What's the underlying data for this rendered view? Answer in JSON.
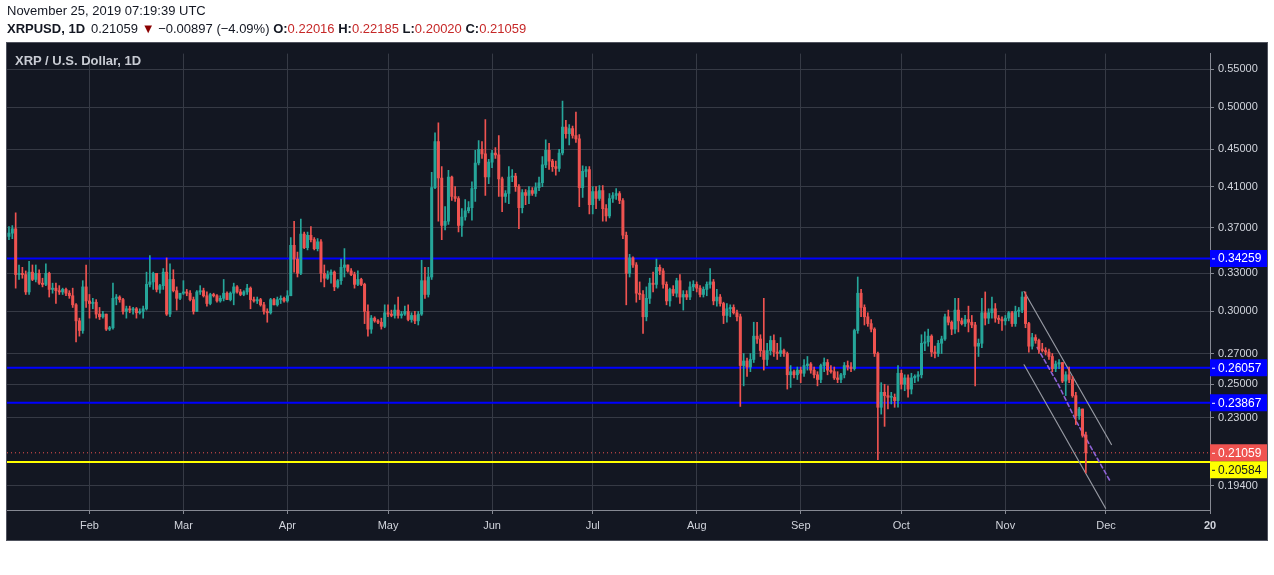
{
  "chart_data": {
    "type": "candlestick",
    "title": "XRP / U.S. Dollar, 1D",
    "subtitle": "XRPUSD, 1D",
    "annotations": [
      "November 25, 2019 07:19:39 UTC",
      "0.21059 ▼ −0.00897 (−4.09%) O:0.22016 H:0.22185 L:0.20020 C:0.21059"
    ],
    "x": [
      "2019-01-08",
      "2019-01-09",
      "2019-01-10",
      "2019-01-11",
      "2019-01-12",
      "2019-01-13",
      "2019-01-14",
      "2019-01-15",
      "2019-01-16",
      "2019-01-17",
      "2019-01-18",
      "2019-01-19",
      "2019-01-20",
      "2019-01-21",
      "2019-01-22",
      "2019-01-23",
      "2019-01-24",
      "2019-01-25",
      "2019-01-26",
      "2019-01-27",
      "2019-01-28",
      "2019-01-29",
      "2019-01-30",
      "2019-01-31",
      "2019-02-01",
      "2019-02-02",
      "2019-02-03",
      "2019-02-04",
      "2019-02-05",
      "2019-02-06",
      "2019-02-07",
      "2019-02-08",
      "2019-02-09",
      "2019-02-10",
      "2019-02-11",
      "2019-02-12",
      "2019-02-13",
      "2019-02-14",
      "2019-02-15",
      "2019-02-16",
      "2019-02-17",
      "2019-02-18",
      "2019-02-19",
      "2019-02-20",
      "2019-02-21",
      "2019-02-22",
      "2019-02-23",
      "2019-02-24",
      "2019-02-25",
      "2019-02-26",
      "2019-02-27",
      "2019-02-28",
      "2019-03-01",
      "2019-03-02",
      "2019-03-03",
      "2019-03-04",
      "2019-03-05",
      "2019-03-06",
      "2019-03-07",
      "2019-03-08",
      "2019-03-09",
      "2019-03-10",
      "2019-03-11",
      "2019-03-12",
      "2019-03-13",
      "2019-03-14",
      "2019-03-15",
      "2019-03-16",
      "2019-03-17",
      "2019-03-18",
      "2019-03-19",
      "2019-03-20",
      "2019-03-21",
      "2019-03-22",
      "2019-03-23",
      "2019-03-24",
      "2019-03-25",
      "2019-03-26",
      "2019-03-27",
      "2019-03-28",
      "2019-03-29",
      "2019-03-30",
      "2019-03-31",
      "2019-04-01",
      "2019-04-02",
      "2019-04-03",
      "2019-04-04",
      "2019-04-05",
      "2019-04-06",
      "2019-04-07",
      "2019-04-08",
      "2019-04-09",
      "2019-04-10",
      "2019-04-11",
      "2019-04-12",
      "2019-04-13",
      "2019-04-14",
      "2019-04-15",
      "2019-04-16",
      "2019-04-17",
      "2019-04-18",
      "2019-04-19",
      "2019-04-20",
      "2019-04-21",
      "2019-04-22",
      "2019-04-23",
      "2019-04-24",
      "2019-04-25",
      "2019-04-26",
      "2019-04-27",
      "2019-04-28",
      "2019-04-29",
      "2019-04-30",
      "2019-05-01",
      "2019-05-02",
      "2019-05-03",
      "2019-05-04",
      "2019-05-05",
      "2019-05-06",
      "2019-05-07",
      "2019-05-08",
      "2019-05-09",
      "2019-05-10",
      "2019-05-11",
      "2019-05-12",
      "2019-05-13",
      "2019-05-14",
      "2019-05-15",
      "2019-05-16",
      "2019-05-17",
      "2019-05-18",
      "2019-05-19",
      "2019-05-20",
      "2019-05-21",
      "2019-05-22",
      "2019-05-23",
      "2019-05-24",
      "2019-05-25",
      "2019-05-26",
      "2019-05-27",
      "2019-05-28",
      "2019-05-29",
      "2019-05-30",
      "2019-05-31",
      "2019-06-01",
      "2019-06-02",
      "2019-06-03",
      "2019-06-04",
      "2019-06-05",
      "2019-06-06",
      "2019-06-07",
      "2019-06-08",
      "2019-06-09",
      "2019-06-10",
      "2019-06-11",
      "2019-06-12",
      "2019-06-13",
      "2019-06-14",
      "2019-06-15",
      "2019-06-16",
      "2019-06-17",
      "2019-06-18",
      "2019-06-19",
      "2019-06-20",
      "2019-06-21",
      "2019-06-22",
      "2019-06-23",
      "2019-06-24",
      "2019-06-25",
      "2019-06-26",
      "2019-06-27",
      "2019-06-28",
      "2019-06-29",
      "2019-06-30",
      "2019-07-01",
      "2019-07-02",
      "2019-07-03",
      "2019-07-04",
      "2019-07-05",
      "2019-07-06",
      "2019-07-07",
      "2019-07-08",
      "2019-07-09",
      "2019-07-10",
      "2019-07-11",
      "2019-07-12",
      "2019-07-13",
      "2019-07-14",
      "2019-07-15",
      "2019-07-16",
      "2019-07-17",
      "2019-07-18",
      "2019-07-19",
      "2019-07-20",
      "2019-07-21",
      "2019-07-22",
      "2019-07-23",
      "2019-07-24",
      "2019-07-25",
      "2019-07-26",
      "2019-07-27",
      "2019-07-28",
      "2019-07-29",
      "2019-07-30",
      "2019-07-31",
      "2019-08-01",
      "2019-08-02",
      "2019-08-03",
      "2019-08-04",
      "2019-08-05",
      "2019-08-06",
      "2019-08-07",
      "2019-08-08",
      "2019-08-09",
      "2019-08-10",
      "2019-08-11",
      "2019-08-12",
      "2019-08-13",
      "2019-08-14",
      "2019-08-15",
      "2019-08-16",
      "2019-08-17",
      "2019-08-18",
      "2019-08-19",
      "2019-08-20",
      "2019-08-21",
      "2019-08-22",
      "2019-08-23",
      "2019-08-24",
      "2019-08-25",
      "2019-08-26",
      "2019-08-27",
      "2019-08-28",
      "2019-08-29",
      "2019-08-30",
      "2019-08-31",
      "2019-09-01",
      "2019-09-02",
      "2019-09-03",
      "2019-09-04",
      "2019-09-05",
      "2019-09-06",
      "2019-09-07",
      "2019-09-08",
      "2019-09-09",
      "2019-09-10",
      "2019-09-11",
      "2019-09-12",
      "2019-09-13",
      "2019-09-14",
      "2019-09-15",
      "2019-09-16",
      "2019-09-17",
      "2019-09-18",
      "2019-09-19",
      "2019-09-20",
      "2019-09-21",
      "2019-09-22",
      "2019-09-23",
      "2019-09-24",
      "2019-09-25",
      "2019-09-26",
      "2019-09-27",
      "2019-09-28",
      "2019-09-29",
      "2019-09-30",
      "2019-10-01",
      "2019-10-02",
      "2019-10-03",
      "2019-10-04",
      "2019-10-05",
      "2019-10-06",
      "2019-10-07",
      "2019-10-08",
      "2019-10-09",
      "2019-10-10",
      "2019-10-11",
      "2019-10-12",
      "2019-10-13",
      "2019-10-14",
      "2019-10-15",
      "2019-10-16",
      "2019-10-17",
      "2019-10-18",
      "2019-10-19",
      "2019-10-20",
      "2019-10-21",
      "2019-10-22",
      "2019-10-23",
      "2019-10-24",
      "2019-10-25",
      "2019-10-26",
      "2019-10-27",
      "2019-10-28",
      "2019-10-29",
      "2019-10-30",
      "2019-10-31",
      "2019-11-01",
      "2019-11-02",
      "2019-11-03",
      "2019-11-04",
      "2019-11-05",
      "2019-11-06",
      "2019-11-07",
      "2019-11-08",
      "2019-11-09",
      "2019-11-10",
      "2019-11-11",
      "2019-11-12",
      "2019-11-13",
      "2019-11-14",
      "2019-11-15",
      "2019-11-16",
      "2019-11-17",
      "2019-11-18",
      "2019-11-19",
      "2019-11-20",
      "2019-11-21",
      "2019-11-22",
      "2019-11-23",
      "2019-11-24",
      "2019-11-25"
    ],
    "ohlc": [
      [
        0.362,
        0.371,
        0.359,
        0.365
      ],
      [
        0.365,
        0.372,
        0.36,
        0.369
      ],
      [
        0.369,
        0.384,
        0.318,
        0.329
      ],
      [
        0.329,
        0.337,
        0.325,
        0.33
      ],
      [
        0.33,
        0.335,
        0.326,
        0.329
      ],
      [
        0.329,
        0.332,
        0.313,
        0.315
      ],
      [
        0.315,
        0.34,
        0.313,
        0.331
      ],
      [
        0.331,
        0.337,
        0.324,
        0.325
      ],
      [
        0.325,
        0.337,
        0.323,
        0.33
      ],
      [
        0.33,
        0.333,
        0.321,
        0.322
      ],
      [
        0.322,
        0.326,
        0.319,
        0.321
      ],
      [
        0.321,
        0.338,
        0.32,
        0.33
      ],
      [
        0.33,
        0.331,
        0.311,
        0.317
      ],
      [
        0.317,
        0.322,
        0.314,
        0.318
      ],
      [
        0.318,
        0.322,
        0.306,
        0.316
      ],
      [
        0.316,
        0.32,
        0.313,
        0.315
      ],
      [
        0.315,
        0.318,
        0.313,
        0.317
      ],
      [
        0.317,
        0.318,
        0.312,
        0.314
      ],
      [
        0.314,
        0.316,
        0.31,
        0.312
      ],
      [
        0.312,
        0.318,
        0.303,
        0.305
      ],
      [
        0.305,
        0.306,
        0.278,
        0.293
      ],
      [
        0.293,
        0.295,
        0.282,
        0.286
      ],
      [
        0.286,
        0.324,
        0.284,
        0.319
      ],
      [
        0.319,
        0.337,
        0.303,
        0.308
      ],
      [
        0.308,
        0.313,
        0.295,
        0.306
      ],
      [
        0.306,
        0.31,
        0.302,
        0.307
      ],
      [
        0.307,
        0.309,
        0.295,
        0.298
      ],
      [
        0.298,
        0.303,
        0.294,
        0.296
      ],
      [
        0.296,
        0.3,
        0.295,
        0.298
      ],
      [
        0.298,
        0.298,
        0.286,
        0.287
      ],
      [
        0.287,
        0.289,
        0.286,
        0.288
      ],
      [
        0.288,
        0.322,
        0.287,
        0.31
      ],
      [
        0.31,
        0.313,
        0.305,
        0.311
      ],
      [
        0.311,
        0.312,
        0.307,
        0.309
      ],
      [
        0.309,
        0.31,
        0.298,
        0.3
      ],
      [
        0.3,
        0.304,
        0.295,
        0.302
      ],
      [
        0.302,
        0.304,
        0.299,
        0.301
      ],
      [
        0.301,
        0.303,
        0.298,
        0.302
      ],
      [
        0.302,
        0.303,
        0.295,
        0.299
      ],
      [
        0.299,
        0.302,
        0.298,
        0.3
      ],
      [
        0.3,
        0.304,
        0.295,
        0.302
      ],
      [
        0.302,
        0.331,
        0.301,
        0.321
      ],
      [
        0.321,
        0.345,
        0.319,
        0.323
      ],
      [
        0.323,
        0.331,
        0.317,
        0.33
      ],
      [
        0.33,
        0.33,
        0.315,
        0.317
      ],
      [
        0.317,
        0.321,
        0.314,
        0.32
      ],
      [
        0.32,
        0.334,
        0.317,
        0.331
      ],
      [
        0.331,
        0.343,
        0.297,
        0.298
      ],
      [
        0.298,
        0.338,
        0.296,
        0.325
      ],
      [
        0.325,
        0.333,
        0.315,
        0.316
      ],
      [
        0.316,
        0.319,
        0.301,
        0.31
      ],
      [
        0.31,
        0.314,
        0.309,
        0.314
      ],
      [
        0.314,
        0.324,
        0.313,
        0.315
      ],
      [
        0.315,
        0.317,
        0.312,
        0.314
      ],
      [
        0.314,
        0.316,
        0.308,
        0.309
      ],
      [
        0.309,
        0.311,
        0.298,
        0.3
      ],
      [
        0.3,
        0.316,
        0.3,
        0.315
      ],
      [
        0.315,
        0.32,
        0.313,
        0.316
      ],
      [
        0.316,
        0.318,
        0.311,
        0.312
      ],
      [
        0.312,
        0.315,
        0.304,
        0.306
      ],
      [
        0.306,
        0.314,
        0.305,
        0.313
      ],
      [
        0.313,
        0.314,
        0.311,
        0.312
      ],
      [
        0.312,
        0.313,
        0.307,
        0.308
      ],
      [
        0.308,
        0.312,
        0.307,
        0.31
      ],
      [
        0.31,
        0.325,
        0.308,
        0.314
      ],
      [
        0.314,
        0.315,
        0.309,
        0.309
      ],
      [
        0.309,
        0.315,
        0.308,
        0.314
      ],
      [
        0.314,
        0.322,
        0.305,
        0.319
      ],
      [
        0.319,
        0.32,
        0.314,
        0.315
      ],
      [
        0.315,
        0.317,
        0.312,
        0.313
      ],
      [
        0.313,
        0.316,
        0.312,
        0.315
      ],
      [
        0.315,
        0.321,
        0.313,
        0.318
      ],
      [
        0.318,
        0.319,
        0.302,
        0.309
      ],
      [
        0.309,
        0.311,
        0.307,
        0.308
      ],
      [
        0.308,
        0.311,
        0.306,
        0.309
      ],
      [
        0.309,
        0.31,
        0.304,
        0.305
      ],
      [
        0.305,
        0.307,
        0.298,
        0.3
      ],
      [
        0.3,
        0.302,
        0.292,
        0.299
      ],
      [
        0.299,
        0.31,
        0.298,
        0.309
      ],
      [
        0.309,
        0.31,
        0.305,
        0.305
      ],
      [
        0.305,
        0.311,
        0.304,
        0.309
      ],
      [
        0.309,
        0.312,
        0.306,
        0.31
      ],
      [
        0.31,
        0.311,
        0.307,
        0.308
      ],
      [
        0.308,
        0.316,
        0.307,
        0.312
      ],
      [
        0.312,
        0.361,
        0.312,
        0.354
      ],
      [
        0.354,
        0.376,
        0.331,
        0.342
      ],
      [
        0.342,
        0.348,
        0.327,
        0.33
      ],
      [
        0.33,
        0.378,
        0.329,
        0.364
      ],
      [
        0.364,
        0.366,
        0.351,
        0.352
      ],
      [
        0.352,
        0.366,
        0.35,
        0.363
      ],
      [
        0.363,
        0.371,
        0.357,
        0.359
      ],
      [
        0.359,
        0.361,
        0.35,
        0.351
      ],
      [
        0.351,
        0.36,
        0.349,
        0.357
      ],
      [
        0.357,
        0.359,
        0.323,
        0.33
      ],
      [
        0.33,
        0.337,
        0.319,
        0.326
      ],
      [
        0.326,
        0.332,
        0.325,
        0.329
      ],
      [
        0.329,
        0.333,
        0.322,
        0.331
      ],
      [
        0.331,
        0.332,
        0.316,
        0.319
      ],
      [
        0.319,
        0.325,
        0.318,
        0.324
      ],
      [
        0.324,
        0.342,
        0.321,
        0.335
      ],
      [
        0.335,
        0.351,
        0.327,
        0.337
      ],
      [
        0.337,
        0.337,
        0.331,
        0.332
      ],
      [
        0.332,
        0.334,
        0.328,
        0.329
      ],
      [
        0.329,
        0.331,
        0.318,
        0.321
      ],
      [
        0.321,
        0.332,
        0.32,
        0.325
      ],
      [
        0.325,
        0.326,
        0.32,
        0.321
      ],
      [
        0.321,
        0.322,
        0.291,
        0.3
      ],
      [
        0.3,
        0.305,
        0.282,
        0.287
      ],
      [
        0.287,
        0.297,
        0.284,
        0.295
      ],
      [
        0.295,
        0.296,
        0.292,
        0.293
      ],
      [
        0.293,
        0.294,
        0.291,
        0.292
      ],
      [
        0.292,
        0.295,
        0.287,
        0.289
      ],
      [
        0.289,
        0.305,
        0.288,
        0.299
      ],
      [
        0.299,
        0.305,
        0.296,
        0.298
      ],
      [
        0.298,
        0.301,
        0.296,
        0.297
      ],
      [
        0.297,
        0.305,
        0.295,
        0.301
      ],
      [
        0.301,
        0.311,
        0.295,
        0.297
      ],
      [
        0.297,
        0.3,
        0.295,
        0.298
      ],
      [
        0.298,
        0.304,
        0.297,
        0.3
      ],
      [
        0.3,
        0.305,
        0.293,
        0.294
      ],
      [
        0.294,
        0.299,
        0.292,
        0.297
      ],
      [
        0.297,
        0.3,
        0.291,
        0.293
      ],
      [
        0.293,
        0.3,
        0.29,
        0.298
      ],
      [
        0.298,
        0.341,
        0.297,
        0.324
      ],
      [
        0.324,
        0.335,
        0.31,
        0.313
      ],
      [
        0.313,
        0.335,
        0.311,
        0.327
      ],
      [
        0.327,
        0.425,
        0.325,
        0.409
      ],
      [
        0.409,
        0.469,
        0.408,
        0.459
      ],
      [
        0.459,
        0.481,
        0.376,
        0.419
      ],
      [
        0.419,
        0.431,
        0.359,
        0.372
      ],
      [
        0.372,
        0.39,
        0.368,
        0.376
      ],
      [
        0.376,
        0.427,
        0.373,
        0.42
      ],
      [
        0.42,
        0.421,
        0.396,
        0.4
      ],
      [
        0.4,
        0.41,
        0.395,
        0.398
      ],
      [
        0.398,
        0.4,
        0.366,
        0.372
      ],
      [
        0.372,
        0.388,
        0.362,
        0.38
      ],
      [
        0.38,
        0.397,
        0.377,
        0.386
      ],
      [
        0.386,
        0.395,
        0.384,
        0.389
      ],
      [
        0.389,
        0.415,
        0.377,
        0.408
      ],
      [
        0.408,
        0.449,
        0.395,
        0.435
      ],
      [
        0.435,
        0.46,
        0.433,
        0.45
      ],
      [
        0.45,
        0.459,
        0.44,
        0.445
      ],
      [
        0.445,
        0.485,
        0.401,
        0.42
      ],
      [
        0.42,
        0.439,
        0.413,
        0.436
      ],
      [
        0.436,
        0.449,
        0.43,
        0.446
      ],
      [
        0.446,
        0.452,
        0.44,
        0.444
      ],
      [
        0.444,
        0.466,
        0.4,
        0.418
      ],
      [
        0.418,
        0.42,
        0.385,
        0.4
      ],
      [
        0.4,
        0.406,
        0.394,
        0.403
      ],
      [
        0.403,
        0.431,
        0.393,
        0.42
      ],
      [
        0.42,
        0.428,
        0.415,
        0.421
      ],
      [
        0.421,
        0.424,
        0.405,
        0.41
      ],
      [
        0.41,
        0.412,
        0.369,
        0.389
      ],
      [
        0.389,
        0.407,
        0.384,
        0.404
      ],
      [
        0.404,
        0.407,
        0.392,
        0.401
      ],
      [
        0.401,
        0.41,
        0.393,
        0.406
      ],
      [
        0.406,
        0.409,
        0.401,
        0.403
      ],
      [
        0.403,
        0.414,
        0.4,
        0.409
      ],
      [
        0.409,
        0.42,
        0.406,
        0.414
      ],
      [
        0.414,
        0.442,
        0.41,
        0.433
      ],
      [
        0.433,
        0.461,
        0.43,
        0.449
      ],
      [
        0.449,
        0.457,
        0.428,
        0.437
      ],
      [
        0.437,
        0.439,
        0.426,
        0.431
      ],
      [
        0.431,
        0.437,
        0.422,
        0.429
      ],
      [
        0.429,
        0.45,
        0.426,
        0.446
      ],
      [
        0.446,
        0.508,
        0.444,
        0.476
      ],
      [
        0.476,
        0.484,
        0.463,
        0.468
      ],
      [
        0.468,
        0.479,
        0.455,
        0.474
      ],
      [
        0.474,
        0.477,
        0.463,
        0.466
      ],
      [
        0.466,
        0.494,
        0.458,
        0.462
      ],
      [
        0.462,
        0.467,
        0.39,
        0.409
      ],
      [
        0.409,
        0.432,
        0.399,
        0.426
      ],
      [
        0.426,
        0.431,
        0.42,
        0.428
      ],
      [
        0.428,
        0.431,
        0.383,
        0.392
      ],
      [
        0.392,
        0.41,
        0.383,
        0.405
      ],
      [
        0.405,
        0.41,
        0.388,
        0.398
      ],
      [
        0.398,
        0.411,
        0.396,
        0.406
      ],
      [
        0.406,
        0.411,
        0.376,
        0.388
      ],
      [
        0.388,
        0.392,
        0.376,
        0.381
      ],
      [
        0.381,
        0.403,
        0.379,
        0.398
      ],
      [
        0.398,
        0.404,
        0.394,
        0.401
      ],
      [
        0.401,
        0.408,
        0.397,
        0.403
      ],
      [
        0.403,
        0.405,
        0.393,
        0.396
      ],
      [
        0.396,
        0.398,
        0.36,
        0.363
      ],
      [
        0.363,
        0.366,
        0.305,
        0.33
      ],
      [
        0.33,
        0.346,
        0.327,
        0.343
      ],
      [
        0.343,
        0.344,
        0.335,
        0.337
      ],
      [
        0.337,
        0.339,
        0.307,
        0.314
      ],
      [
        0.314,
        0.323,
        0.309,
        0.313
      ],
      [
        0.313,
        0.316,
        0.284,
        0.296
      ],
      [
        0.296,
        0.319,
        0.293,
        0.31
      ],
      [
        0.31,
        0.326,
        0.306,
        0.322
      ],
      [
        0.322,
        0.331,
        0.315,
        0.321
      ],
      [
        0.321,
        0.342,
        0.318,
        0.335
      ],
      [
        0.335,
        0.337,
        0.329,
        0.332
      ],
      [
        0.332,
        0.334,
        0.318,
        0.321
      ],
      [
        0.321,
        0.323,
        0.305,
        0.308
      ],
      [
        0.308,
        0.318,
        0.304,
        0.317
      ],
      [
        0.317,
        0.32,
        0.312,
        0.314
      ],
      [
        0.314,
        0.326,
        0.311,
        0.324
      ],
      [
        0.324,
        0.329,
        0.306,
        0.311
      ],
      [
        0.311,
        0.316,
        0.301,
        0.313
      ],
      [
        0.313,
        0.316,
        0.309,
        0.311
      ],
      [
        0.311,
        0.323,
        0.309,
        0.319
      ],
      [
        0.319,
        0.324,
        0.316,
        0.321
      ],
      [
        0.321,
        0.323,
        0.315,
        0.318
      ],
      [
        0.318,
        0.32,
        0.311,
        0.313
      ],
      [
        0.313,
        0.319,
        0.311,
        0.317
      ],
      [
        0.317,
        0.323,
        0.312,
        0.321
      ],
      [
        0.321,
        0.334,
        0.318,
        0.323
      ],
      [
        0.323,
        0.325,
        0.305,
        0.308
      ],
      [
        0.308,
        0.317,
        0.304,
        0.311
      ],
      [
        0.311,
        0.313,
        0.304,
        0.306
      ],
      [
        0.306,
        0.307,
        0.291,
        0.297
      ],
      [
        0.297,
        0.306,
        0.292,
        0.302
      ],
      [
        0.302,
        0.305,
        0.296,
        0.303
      ],
      [
        0.303,
        0.305,
        0.298,
        0.299
      ],
      [
        0.299,
        0.301,
        0.293,
        0.296
      ],
      [
        0.296,
        0.298,
        0.2365,
        0.262
      ],
      [
        0.262,
        0.27,
        0.249,
        0.265
      ],
      [
        0.265,
        0.267,
        0.255,
        0.261
      ],
      [
        0.261,
        0.27,
        0.258,
        0.266
      ],
      [
        0.266,
        0.292,
        0.264,
        0.282
      ],
      [
        0.282,
        0.292,
        0.277,
        0.28
      ],
      [
        0.28,
        0.283,
        0.268,
        0.272
      ],
      [
        0.272,
        0.31,
        0.259,
        0.266
      ],
      [
        0.266,
        0.277,
        0.262,
        0.272
      ],
      [
        0.272,
        0.282,
        0.269,
        0.279
      ],
      [
        0.279,
        0.283,
        0.268,
        0.271
      ],
      [
        0.271,
        0.277,
        0.266,
        0.27
      ],
      [
        0.27,
        0.281,
        0.268,
        0.272
      ],
      [
        0.272,
        0.273,
        0.268,
        0.27
      ],
      [
        0.27,
        0.271,
        0.247,
        0.256
      ],
      [
        0.256,
        0.262,
        0.248,
        0.258
      ],
      [
        0.258,
        0.259,
        0.254,
        0.256
      ],
      [
        0.256,
        0.261,
        0.253,
        0.259
      ],
      [
        0.259,
        0.261,
        0.251,
        0.257
      ],
      [
        0.257,
        0.266,
        0.255,
        0.262
      ],
      [
        0.262,
        0.268,
        0.259,
        0.263
      ],
      [
        0.263,
        0.264,
        0.257,
        0.259
      ],
      [
        0.259,
        0.261,
        0.254,
        0.256
      ],
      [
        0.256,
        0.258,
        0.249,
        0.253
      ],
      [
        0.253,
        0.263,
        0.251,
        0.262
      ],
      [
        0.262,
        0.267,
        0.258,
        0.264
      ],
      [
        0.264,
        0.266,
        0.256,
        0.259
      ],
      [
        0.259,
        0.262,
        0.257,
        0.258
      ],
      [
        0.258,
        0.261,
        0.253,
        0.254
      ],
      [
        0.254,
        0.258,
        0.251,
        0.253
      ],
      [
        0.253,
        0.257,
        0.251,
        0.256
      ],
      [
        0.256,
        0.264,
        0.254,
        0.262
      ],
      [
        0.262,
        0.265,
        0.259,
        0.261
      ],
      [
        0.261,
        0.264,
        0.258,
        0.26
      ],
      [
        0.26,
        0.287,
        0.259,
        0.286
      ],
      [
        0.286,
        0.327,
        0.284,
        0.314
      ],
      [
        0.314,
        0.317,
        0.296,
        0.303
      ],
      [
        0.303,
        0.305,
        0.29,
        0.296
      ],
      [
        0.296,
        0.299,
        0.289,
        0.291
      ],
      [
        0.291,
        0.294,
        0.285,
        0.287
      ],
      [
        0.287,
        0.288,
        0.268,
        0.27
      ],
      [
        0.27,
        0.271,
        0.207,
        0.236
      ],
      [
        0.236,
        0.251,
        0.232,
        0.245
      ],
      [
        0.245,
        0.25,
        0.225,
        0.243
      ],
      [
        0.243,
        0.249,
        0.235,
        0.242
      ],
      [
        0.242,
        0.245,
        0.238,
        0.242
      ],
      [
        0.242,
        0.244,
        0.236,
        0.24
      ],
      [
        0.24,
        0.262,
        0.236,
        0.257
      ],
      [
        0.257,
        0.259,
        0.247,
        0.25
      ],
      [
        0.25,
        0.256,
        0.246,
        0.254
      ],
      [
        0.254,
        0.256,
        0.242,
        0.247
      ],
      [
        0.247,
        0.257,
        0.244,
        0.254
      ],
      [
        0.254,
        0.256,
        0.251,
        0.255
      ],
      [
        0.255,
        0.258,
        0.252,
        0.256
      ],
      [
        0.256,
        0.283,
        0.254,
        0.277
      ],
      [
        0.277,
        0.285,
        0.272,
        0.278
      ],
      [
        0.278,
        0.287,
        0.275,
        0.282
      ],
      [
        0.282,
        0.283,
        0.268,
        0.271
      ],
      [
        0.271,
        0.275,
        0.267,
        0.27
      ],
      [
        0.27,
        0.279,
        0.268,
        0.277
      ],
      [
        0.277,
        0.282,
        0.27,
        0.28
      ],
      [
        0.28,
        0.298,
        0.279,
        0.296
      ],
      [
        0.296,
        0.301,
        0.29,
        0.292
      ],
      [
        0.292,
        0.293,
        0.283,
        0.287
      ],
      [
        0.287,
        0.31,
        0.284,
        0.301
      ],
      [
        0.301,
        0.31,
        0.285,
        0.293
      ],
      [
        0.293,
        0.295,
        0.29,
        0.291
      ],
      [
        0.291,
        0.297,
        0.289,
        0.294
      ],
      [
        0.294,
        0.304,
        0.285,
        0.292
      ],
      [
        0.292,
        0.297,
        0.288,
        0.29
      ],
      [
        0.29,
        0.292,
        0.249,
        0.275
      ],
      [
        0.275,
        0.28,
        0.268,
        0.277
      ],
      [
        0.277,
        0.31,
        0.274,
        0.299
      ],
      [
        0.299,
        0.315,
        0.29,
        0.295
      ],
      [
        0.295,
        0.302,
        0.291,
        0.299
      ],
      [
        0.299,
        0.311,
        0.295,
        0.302
      ],
      [
        0.302,
        0.306,
        0.292,
        0.295
      ],
      [
        0.295,
        0.297,
        0.291,
        0.294
      ],
      [
        0.294,
        0.296,
        0.286,
        0.293
      ],
      [
        0.293,
        0.297,
        0.29,
        0.295
      ],
      [
        0.295,
        0.3,
        0.293,
        0.299
      ],
      [
        0.299,
        0.3,
        0.289,
        0.291
      ],
      [
        0.291,
        0.304,
        0.289,
        0.3
      ],
      [
        0.3,
        0.303,
        0.296,
        0.301
      ],
      [
        0.301,
        0.315,
        0.299,
        0.311
      ],
      [
        0.311,
        0.315,
        0.288,
        0.291
      ],
      [
        0.291,
        0.292,
        0.271,
        0.275
      ],
      [
        0.275,
        0.284,
        0.273,
        0.281
      ],
      [
        0.281,
        0.283,
        0.277,
        0.279
      ],
      [
        0.279,
        0.28,
        0.27,
        0.273
      ],
      [
        0.273,
        0.277,
        0.271,
        0.272
      ],
      [
        0.272,
        0.274,
        0.269,
        0.271
      ],
      [
        0.271,
        0.273,
        0.266,
        0.268
      ],
      [
        0.268,
        0.27,
        0.258,
        0.26
      ],
      [
        0.26,
        0.265,
        0.258,
        0.263
      ],
      [
        0.263,
        0.266,
        0.26,
        0.264
      ],
      [
        0.264,
        0.264,
        0.251,
        0.252
      ],
      [
        0.252,
        0.258,
        0.243,
        0.256
      ],
      [
        0.256,
        0.261,
        0.251,
        0.253
      ],
      [
        0.253,
        0.255,
        0.242,
        0.243
      ],
      [
        0.243,
        0.245,
        0.226,
        0.231
      ],
      [
        0.231,
        0.236,
        0.229,
        0.235
      ],
      [
        0.235,
        0.235,
        0.219,
        0.22
      ],
      [
        0.22016,
        0.22185,
        0.2002,
        0.21059
      ]
    ],
    "series": [
      {
        "type": "line",
        "color": "#9598a1",
        "x": [
          "2019-11-06T14:00",
          "2019-12-02T15:00"
        ],
        "values": [
          0.3153,
          0.215
        ]
      },
      {
        "type": "line",
        "color": "#9598a1",
        "x": [
          "2019-11-06T14:00",
          "2019-11-30T21:00"
        ],
        "values": [
          0.2625,
          0.1833
        ]
      },
      {
        "type": "line",
        "color": "#8e63d6",
        "line_style": "dashed",
        "x": [
          "2019-11-10T12:00",
          "2019-11-17",
          "2019-11-22T05:00",
          "2019-12-02T02:00"
        ],
        "values": [
          0.2741,
          0.249,
          0.2276,
          0.1966
        ]
      }
    ],
    "xlim": [
      "2019-01-07T10:00",
      "2020-01-01"
    ],
    "xticks": [
      {
        "value": "2019-02-01",
        "label": "Feb"
      },
      {
        "value": "2019-03-01",
        "label": "Mar"
      },
      {
        "value": "2019-04-01",
        "label": "Apr"
      },
      {
        "value": "2019-05-01",
        "label": "May"
      },
      {
        "value": "2019-06-01",
        "label": "Jun"
      },
      {
        "value": "2019-07-01",
        "label": "Jul"
      },
      {
        "value": "2019-08-01",
        "label": "Aug"
      },
      {
        "value": "2019-09-01",
        "label": "Sep"
      },
      {
        "value": "2019-10-01",
        "label": "Oct"
      },
      {
        "value": "2019-11-01",
        "label": "Nov"
      },
      {
        "value": "2019-12-01",
        "label": "Dec"
      },
      {
        "value": "2020-01-01",
        "label": "20"
      }
    ],
    "ylim": [
      0.1825,
      0.572
    ],
    "yticks": [
      {
        "value": 0.194,
        "label": "0.19400"
      },
      {
        "value": 0.23,
        "label": "0.23000"
      },
      {
        "value": 0.25,
        "label": "0.25000"
      },
      {
        "value": 0.27,
        "label": "0.27000"
      },
      {
        "value": 0.3,
        "label": "0.30000"
      },
      {
        "value": 0.33,
        "label": "0.33000"
      },
      {
        "value": 0.37,
        "label": "0.37000"
      },
      {
        "value": 0.41,
        "label": "0.41000"
      },
      {
        "value": 0.45,
        "label": "0.45000"
      },
      {
        "value": 0.5,
        "label": "0.50000"
      },
      {
        "value": 0.55,
        "label": "0.55000"
      }
    ],
    "log": true,
    "grid": true,
    "ref_lines": [
      {
        "axis": "y",
        "value": 0.34259,
        "label": "0.34259",
        "color": "#0000ff"
      },
      {
        "axis": "y",
        "value": 0.26057,
        "label": "0.26057",
        "color": "#0000ff"
      },
      {
        "axis": "y",
        "value": 0.23867,
        "label": "0.23867",
        "color": "#0000ff"
      },
      {
        "axis": "y",
        "value": 0.21059,
        "label": "0.21059",
        "color": "#ef5350",
        "line_style": "dotted"
      },
      {
        "axis": "y",
        "value": 0.20584,
        "label": "0.20584",
        "color": "#ffff00"
      }
    ]
  }
}
